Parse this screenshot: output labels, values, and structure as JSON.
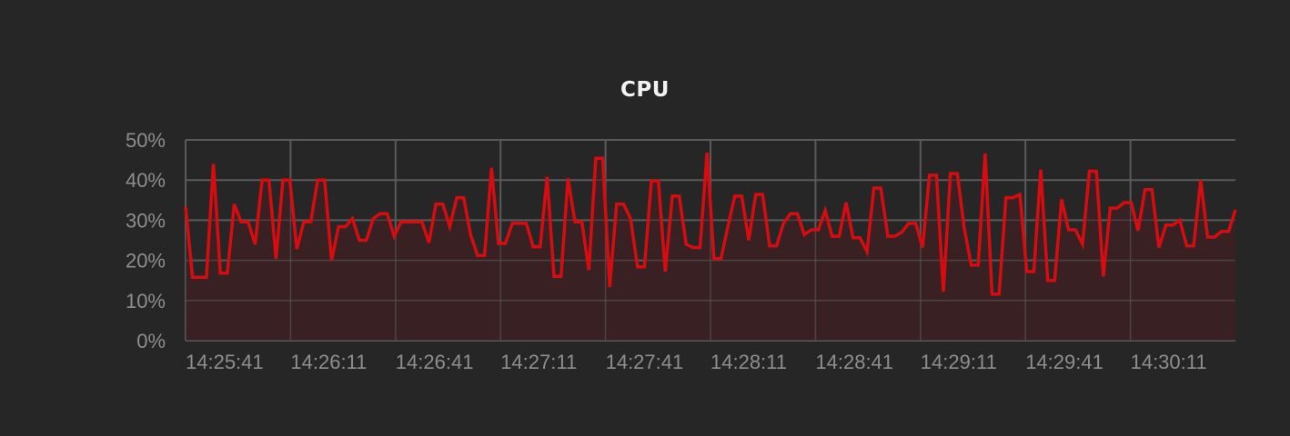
{
  "colors": {
    "background": "#262626",
    "grid": "#5a5a5a",
    "line": "#d50c10",
    "fill": "#3a2022",
    "title": "#f2f2f2",
    "tick": "#8e8e8e"
  },
  "chart_data": {
    "type": "area",
    "title": "CPU",
    "xlabel": "",
    "ylabel": "",
    "ylim": [
      0,
      50
    ],
    "y_ticks": [
      "0%",
      "10%",
      "20%",
      "30%",
      "40%",
      "50%"
    ],
    "y_tick_values": [
      0,
      10,
      20,
      30,
      40,
      50
    ],
    "x_start": "14:25:41",
    "x_end": "14:30:41",
    "x_ticks": [
      "14:25:41",
      "14:26:11",
      "14:26:41",
      "14:27:11",
      "14:27:41",
      "14:28:11",
      "14:28:41",
      "14:29:11",
      "14:29:41",
      "14:30:11"
    ],
    "grid": true,
    "series": [
      {
        "values": [
          33.4,
          15.8,
          15.8,
          15.8,
          44.0,
          16.8,
          16.8,
          34.0,
          29.6,
          29.6,
          24.0,
          40.0,
          40.0,
          20.4,
          40.0,
          40.0,
          22.8,
          29.6,
          29.6,
          40.0,
          40.0,
          20.0,
          28.4,
          28.4,
          30.4,
          25.0,
          25.0,
          30.4,
          31.6,
          31.6,
          26.0,
          29.6,
          29.6,
          29.6,
          29.6,
          24.4,
          34.0,
          34.0,
          28.4,
          35.6,
          35.6,
          26.4,
          21.2,
          21.2,
          43.0,
          24.2,
          24.2,
          29.2,
          29.2,
          29.2,
          23.4,
          23.4,
          40.8,
          16.0,
          16.0,
          40.4,
          29.6,
          29.6,
          17.6,
          45.4,
          45.4,
          13.4,
          34.0,
          34.0,
          30.4,
          18.4,
          18.4,
          39.8,
          39.8,
          17.2,
          36.0,
          36.0,
          24.0,
          23.2,
          23.2,
          46.8,
          20.4,
          20.4,
          28.4,
          36.0,
          36.0,
          25.0,
          36.4,
          36.4,
          23.6,
          23.6,
          29.2,
          31.6,
          31.6,
          26.4,
          27.6,
          27.6,
          32.4,
          26.0,
          26.0,
          34.4,
          25.6,
          25.6,
          22.2,
          38.0,
          38.0,
          26.0,
          26.0,
          27.0,
          29.2,
          29.2,
          23.2,
          41.2,
          41.2,
          12.2,
          41.6,
          41.6,
          28.0,
          18.8,
          18.8,
          46.6,
          11.6,
          11.6,
          35.6,
          35.6,
          36.4,
          17.2,
          17.2,
          42.6,
          15.0,
          15.0,
          35.2,
          27.6,
          27.6,
          24.0,
          42.2,
          42.2,
          16.0,
          33.0,
          33.0,
          34.4,
          34.4,
          27.4,
          37.6,
          37.6,
          23.2,
          28.8,
          28.8,
          30.0,
          23.6,
          23.6,
          40.0,
          25.8,
          25.8,
          27.2,
          27.2,
          32.6
        ]
      }
    ]
  }
}
